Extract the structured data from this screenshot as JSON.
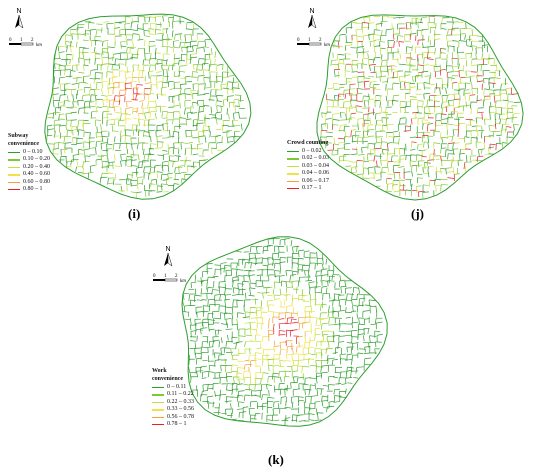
{
  "panels": [
    {
      "id": "i",
      "caption": "(i)",
      "legend": {
        "title_lines": [
          "Subway",
          "convenience"
        ],
        "classes": [
          {
            "label": "0 – 0.10",
            "color": "#2e9e2e"
          },
          {
            "label": "0.10 – 0.20",
            "color": "#7ec832"
          },
          {
            "label": "0.20 – 0.40",
            "color": "#c8e03c"
          },
          {
            "label": "0.40 – 0.60",
            "color": "#f2e24a"
          },
          {
            "label": "0.60 – 0.80",
            "color": "#f4a13a"
          },
          {
            "label": "0.80 – 1",
            "color": "#e8202a"
          }
        ]
      },
      "hotspot": "center-subway"
    },
    {
      "id": "j",
      "caption": "(j)",
      "legend": {
        "title_lines": [
          "Crowd counting"
        ],
        "classes": [
          {
            "label": "0 – 0.02",
            "color": "#2e9e2e"
          },
          {
            "label": "0.02 – 0.03",
            "color": "#7ec832"
          },
          {
            "label": "0.03 – 0.04",
            "color": "#c8e03c"
          },
          {
            "label": "0.04 – 0.06",
            "color": "#f2e24a"
          },
          {
            "label": "0.06 – 0.17",
            "color": "#f4a13a"
          },
          {
            "label": "0.17 – 1",
            "color": "#e8202a"
          }
        ]
      },
      "hotspot": "scattered"
    },
    {
      "id": "k",
      "caption": "(k)",
      "legend": {
        "title_lines": [
          "Work",
          "convenience"
        ],
        "classes": [
          {
            "label": "0 – 0.11",
            "color": "#2e9e2e"
          },
          {
            "label": "0.11 – 0.22",
            "color": "#7ec832"
          },
          {
            "label": "0.22 – 0.33",
            "color": "#c8e03c"
          },
          {
            "label": "0.33 – 0.56",
            "color": "#f2e24a"
          },
          {
            "label": "0.56 – 0.78",
            "color": "#f4a13a"
          },
          {
            "label": "0.78 – 1",
            "color": "#e8202a"
          }
        ]
      },
      "hotspot": "center-east"
    }
  ],
  "scale": {
    "ticks": [
      "0",
      "1",
      "2"
    ],
    "unit": "km"
  },
  "north_label": "N"
}
